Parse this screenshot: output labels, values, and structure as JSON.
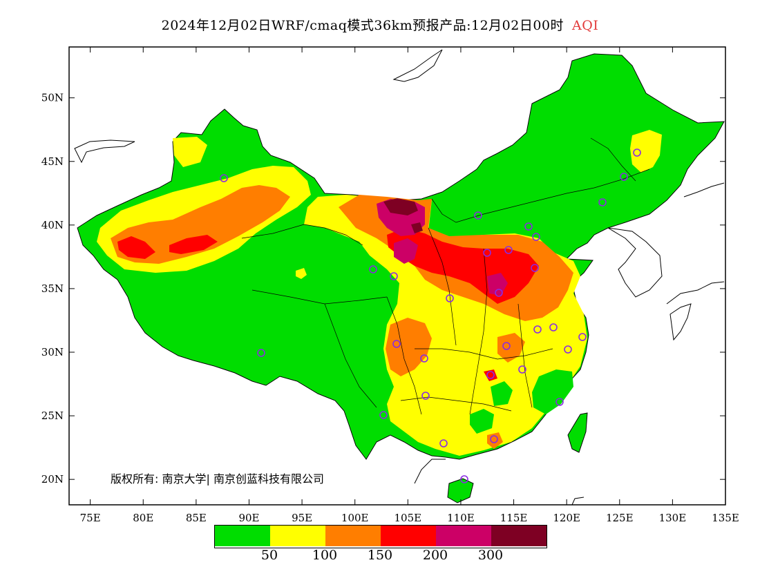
{
  "title": {
    "text": "2024年12月02日WRF/cmaq模式36km预报产品:12月02日00时",
    "variable": "AQI"
  },
  "copyright": "版权所有: 南京大学| 南京创蓝科技有限公司",
  "axes": {
    "lon_ticks": [
      "75E",
      "80E",
      "85E",
      "90E",
      "95E",
      "100E",
      "105E",
      "110E",
      "115E",
      "120E",
      "125E",
      "130E",
      "135E"
    ],
    "lat_ticks": [
      "20N",
      "25N",
      "30N",
      "35N",
      "40N",
      "45N",
      "50N"
    ],
    "lon_range": [
      73,
      135
    ],
    "lat_range": [
      18,
      54
    ]
  },
  "legend": {
    "colors": [
      "#00dd00",
      "#ffff00",
      "#ff7e00",
      "#ff0000",
      "#cc0066",
      "#7e0023"
    ],
    "labels": [
      "50",
      "100",
      "150",
      "200",
      "300"
    ]
  },
  "station_color": "#8a2be2"
}
